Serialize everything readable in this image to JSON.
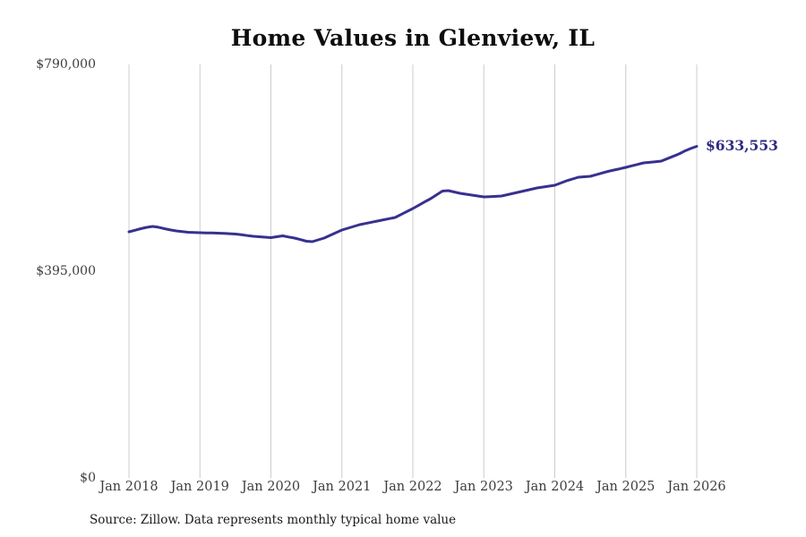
{
  "title": "Home Values in Glenview, IL",
  "annotation": {
    "label": "$633,553"
  },
  "source_note": "Source: Zillow. Data represents monthly typical home value",
  "colors": {
    "line": "#37318f",
    "annotation": "#2f2b80",
    "gridline": "#cccccc",
    "title": "#0d0d0d",
    "tick_label": "#3d3d3d",
    "source": "#1a1a1a",
    "background": "#ffffff"
  },
  "y_axis": {
    "ticks": [
      {
        "label": "$0",
        "value": 0
      },
      {
        "label": "$395,000",
        "value": 395000
      },
      {
        "label": "$790,000",
        "value": 790000
      }
    ],
    "min": 0,
    "max": 790000
  },
  "x_axis": {
    "ticks": [
      "Jan 2018",
      "Jan 2019",
      "Jan 2020",
      "Jan 2021",
      "Jan 2022",
      "Jan 2023",
      "Jan 2024",
      "Jan 2025",
      "Jan 2026"
    ]
  },
  "chart_data": {
    "type": "line",
    "title": "Home Values in Glenview, IL",
    "xlabel": "",
    "ylabel": "",
    "ylim": [
      0,
      790000
    ],
    "y_tick_values": [
      0,
      395000,
      790000
    ],
    "x_tick_labels": [
      "Jan 2018",
      "Jan 2019",
      "Jan 2020",
      "Jan 2021",
      "Jan 2022",
      "Jan 2023",
      "Jan 2024",
      "Jan 2025",
      "Jan 2026"
    ],
    "grid": "vertical-only",
    "legend": "none",
    "last_value_label": "$633,553",
    "series": [
      {
        "name": "Monthly typical home value",
        "color": "#37318f",
        "months": [
          "2018-01",
          "2018-02",
          "2018-03",
          "2018-04",
          "2018-05",
          "2018-06",
          "2018-07",
          "2018-08",
          "2018-09",
          "2018-10",
          "2018-11",
          "2018-12",
          "2019-01",
          "2019-02",
          "2019-03",
          "2019-04",
          "2019-05",
          "2019-06",
          "2019-07",
          "2019-08",
          "2019-09",
          "2019-10",
          "2019-11",
          "2019-12",
          "2020-01",
          "2020-02",
          "2020-03",
          "2020-04",
          "2020-05",
          "2020-06",
          "2020-07",
          "2020-08",
          "2020-09",
          "2020-10",
          "2020-11",
          "2020-12",
          "2021-01",
          "2021-02",
          "2021-03",
          "2021-04",
          "2021-05",
          "2021-06",
          "2021-07",
          "2021-08",
          "2021-09",
          "2021-10",
          "2021-11",
          "2021-12",
          "2022-01",
          "2022-02",
          "2022-03",
          "2022-04",
          "2022-05",
          "2022-06",
          "2022-07",
          "2022-08",
          "2022-09",
          "2022-10",
          "2022-11",
          "2022-12",
          "2023-01",
          "2023-02",
          "2023-03",
          "2023-04",
          "2023-05",
          "2023-06",
          "2023-07",
          "2023-08",
          "2023-09",
          "2023-10",
          "2023-11",
          "2023-12",
          "2024-01",
          "2024-02",
          "2024-03",
          "2024-04",
          "2024-05",
          "2024-06",
          "2024-07",
          "2024-08",
          "2024-09",
          "2024-10",
          "2024-11",
          "2024-12",
          "2025-01",
          "2025-02",
          "2025-03",
          "2025-04",
          "2025-05",
          "2025-06",
          "2025-07",
          "2025-08",
          "2025-09",
          "2025-10",
          "2025-11",
          "2025-12",
          "2026-01"
        ],
        "values": [
          470200,
          473100,
          476200,
          478800,
          480500,
          478900,
          476200,
          473900,
          471900,
          470600,
          469400,
          468900,
          468500,
          468200,
          468000,
          467700,
          467200,
          466600,
          466000,
          464600,
          463100,
          461700,
          460800,
          459900,
          459100,
          460800,
          462500,
          460400,
          458300,
          455300,
          452300,
          451400,
          454800,
          458300,
          463400,
          468500,
          473700,
          477100,
          480500,
          483900,
          486200,
          488500,
          490800,
          493100,
          495400,
          497600,
          503300,
          509000,
          514700,
          521000,
          527300,
          533500,
          540800,
          548000,
          548900,
          546400,
          543800,
          542100,
          540400,
          538600,
          536900,
          537500,
          538000,
          538600,
          541200,
          543800,
          546300,
          548900,
          551500,
          554000,
          555700,
          557400,
          559200,
          563500,
          567700,
          571100,
          574500,
          575400,
          576200,
          579300,
          582500,
          585600,
          588200,
          590700,
          593300,
          596200,
          599000,
          601900,
          603000,
          604200,
          605300,
          609900,
          614400,
          619000,
          624800,
          629500,
          633553
        ]
      }
    ]
  }
}
